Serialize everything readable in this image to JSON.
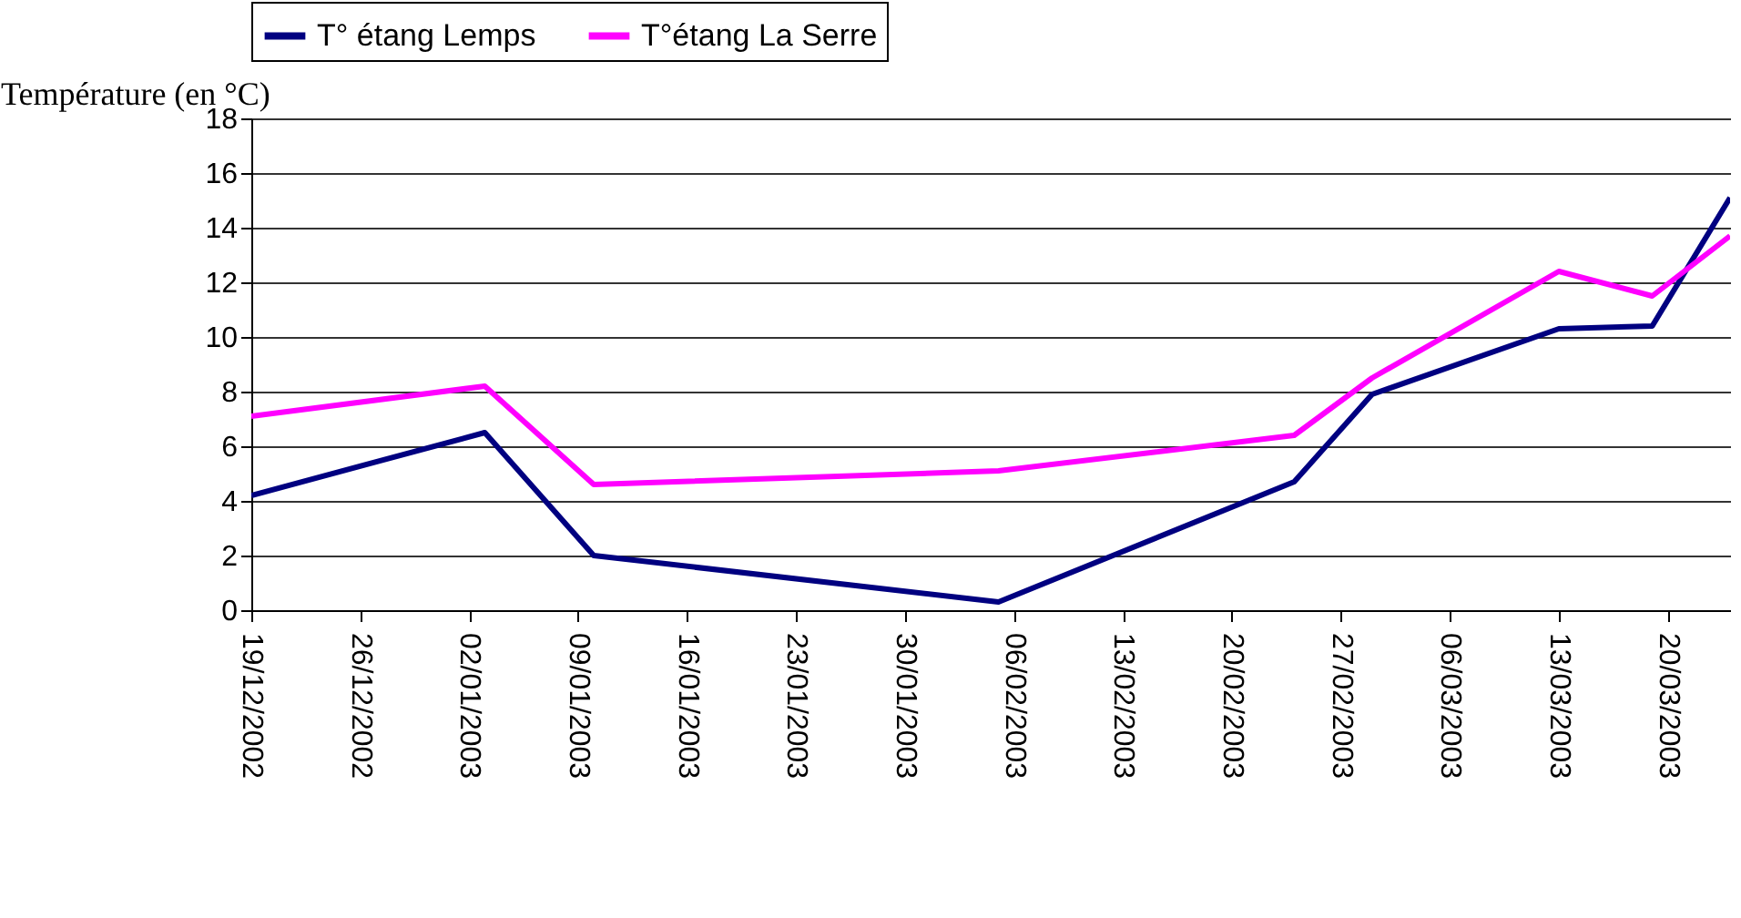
{
  "chart_data": {
    "type": "line",
    "ylabel": "Température (en °C)",
    "x": [
      "2002-12-19",
      "2003-01-03",
      "2003-01-10",
      "2003-02-05",
      "2003-02-24",
      "2003-03-01",
      "2003-03-13",
      "2003-03-19",
      "2003-03-24"
    ],
    "series": [
      {
        "name": "T° étang Lemps",
        "color": "#000080",
        "values": [
          4.2,
          6.5,
          2.0,
          0.3,
          4.7,
          7.9,
          10.3,
          10.4,
          15.1
        ]
      },
      {
        "name": "T°étang La Serre",
        "color": "#ff00ff",
        "values": [
          7.1,
          8.2,
          4.6,
          5.1,
          6.4,
          8.5,
          12.4,
          11.5,
          13.7
        ]
      }
    ],
    "xlim": [
      "2002-12-19",
      "2003-03-24"
    ],
    "xticks": [
      {
        "value": "2002-12-19",
        "label": "19/12/2002"
      },
      {
        "value": "2002-12-26",
        "label": "26/12/2002"
      },
      {
        "value": "2003-01-02",
        "label": "02/01/2003"
      },
      {
        "value": "2003-01-09",
        "label": "09/01/2003"
      },
      {
        "value": "2003-01-16",
        "label": "16/01/2003"
      },
      {
        "value": "2003-01-23",
        "label": "23/01/2003"
      },
      {
        "value": "2003-01-30",
        "label": "30/01/2003"
      },
      {
        "value": "2003-02-06",
        "label": "06/02/2003"
      },
      {
        "value": "2003-02-13",
        "label": "13/02/2003"
      },
      {
        "value": "2003-02-20",
        "label": "20/02/2003"
      },
      {
        "value": "2003-02-27",
        "label": "27/02/2003"
      },
      {
        "value": "2003-03-06",
        "label": "06/03/2003"
      },
      {
        "value": "2003-03-13",
        "label": "13/03/2003"
      },
      {
        "value": "2003-03-20",
        "label": "20/03/2003"
      }
    ],
    "ylim": [
      0,
      18
    ],
    "yticks": [
      0,
      2,
      4,
      6,
      8,
      10,
      12,
      14,
      16,
      18
    ],
    "grid": "y",
    "legend": "top",
    "marker": "none",
    "line_style": "solid"
  }
}
